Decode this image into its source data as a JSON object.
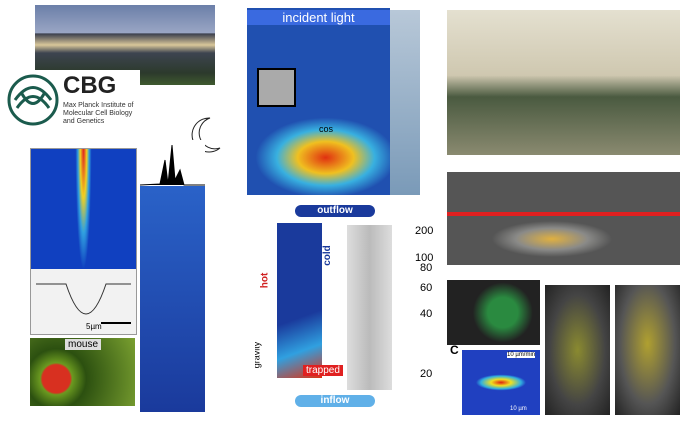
{
  "logo": {
    "acronym": "CBG",
    "institute": "Max Planck Institute of Molecular Cell Biology and Genetics"
  },
  "microscopy": {
    "scale": "5µm",
    "mouse": "mouse"
  },
  "light": {
    "title": "incident light",
    "label": "cos"
  },
  "convection": {
    "outflow": "outflow",
    "inflow": "inflow",
    "hot": "hot",
    "cold": "cold",
    "trapped": "trapped",
    "gravity": "gravity",
    "gel_ticks": [
      "200",
      "100",
      "80",
      "60",
      "40",
      "20"
    ]
  },
  "thermo": {
    "panel": "C",
    "speed": "10 µm/min",
    "scale": "10 µm"
  }
}
